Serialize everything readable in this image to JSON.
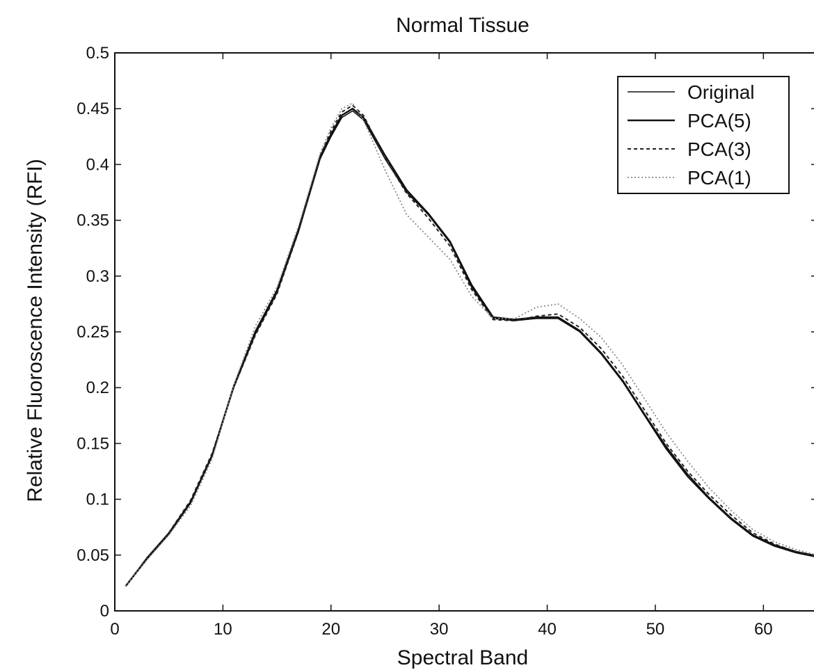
{
  "chart_data": {
    "type": "line",
    "title": "Normal Tissue",
    "xlabel": "Spectral Band",
    "ylabel": "Relative Fluoroscence Intensity (RFI)",
    "xlim": [
      0,
      65
    ],
    "ylim": [
      0,
      0.5
    ],
    "x_ticks": [
      0,
      10,
      20,
      30,
      40,
      50,
      60
    ],
    "x_tick_labels": [
      "0",
      "10",
      "20",
      "30",
      "40",
      "50",
      "60"
    ],
    "y_ticks": [
      0,
      0.05,
      0.1,
      0.15,
      0.2,
      0.25,
      0.3,
      0.35,
      0.4,
      0.45,
      0.5
    ],
    "y_tick_labels": [
      "0",
      "0.05",
      "0.1",
      "0.15",
      "0.2",
      "0.25",
      "0.3",
      "0.35",
      "0.4",
      "0.45",
      "0.5"
    ],
    "grid": false,
    "legend_position": "top-right",
    "x": [
      1,
      3,
      5,
      7,
      9,
      11,
      13,
      15,
      17,
      19,
      20,
      21,
      22,
      23,
      25,
      27,
      29,
      31,
      33,
      35,
      37,
      39,
      41,
      43,
      45,
      47,
      49,
      51,
      53,
      55,
      57,
      59,
      61,
      63,
      65
    ],
    "series": [
      {
        "name": "Original",
        "color": "#111111",
        "style": "solid",
        "values": [
          0.022,
          0.048,
          0.07,
          0.098,
          0.14,
          0.2,
          0.248,
          0.285,
          0.34,
          0.405,
          0.425,
          0.442,
          0.448,
          0.44,
          0.405,
          0.375,
          0.355,
          0.33,
          0.29,
          0.262,
          0.26,
          0.262,
          0.262,
          0.25,
          0.23,
          0.205,
          0.175,
          0.145,
          0.12,
          0.1,
          0.082,
          0.067,
          0.058,
          0.052,
          0.048
        ]
      },
      {
        "name": "PCA(5)",
        "color": "#111111",
        "style": "solid-thick",
        "values": [
          0.022,
          0.047,
          0.069,
          0.097,
          0.139,
          0.201,
          0.25,
          0.287,
          0.342,
          0.407,
          0.427,
          0.444,
          0.45,
          0.442,
          0.408,
          0.377,
          0.356,
          0.331,
          0.292,
          0.263,
          0.261,
          0.263,
          0.263,
          0.251,
          0.231,
          0.206,
          0.176,
          0.147,
          0.122,
          0.101,
          0.083,
          0.068,
          0.059,
          0.053,
          0.049
        ]
      },
      {
        "name": "PCA(3)",
        "color": "#222222",
        "style": "dashed",
        "values": [
          0.022,
          0.047,
          0.07,
          0.099,
          0.141,
          0.2,
          0.247,
          0.284,
          0.34,
          0.408,
          0.43,
          0.447,
          0.453,
          0.444,
          0.406,
          0.374,
          0.352,
          0.327,
          0.288,
          0.261,
          0.26,
          0.264,
          0.266,
          0.254,
          0.235,
          0.21,
          0.18,
          0.15,
          0.125,
          0.104,
          0.086,
          0.07,
          0.06,
          0.053,
          0.049
        ]
      },
      {
        "name": "PCA(1)",
        "color": "#888888",
        "style": "dotted",
        "values": [
          0.022,
          0.046,
          0.068,
          0.094,
          0.136,
          0.202,
          0.255,
          0.29,
          0.345,
          0.41,
          0.433,
          0.45,
          0.455,
          0.44,
          0.395,
          0.355,
          0.335,
          0.315,
          0.282,
          0.262,
          0.262,
          0.272,
          0.275,
          0.262,
          0.245,
          0.22,
          0.19,
          0.16,
          0.134,
          0.11,
          0.09,
          0.073,
          0.062,
          0.055,
          0.05
        ]
      }
    ]
  }
}
